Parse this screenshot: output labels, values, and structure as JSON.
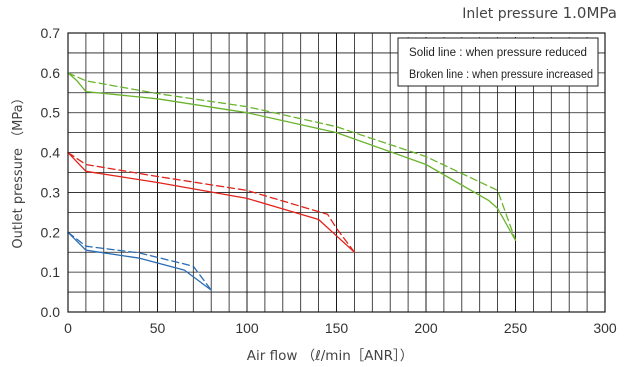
{
  "chart_data": {
    "type": "line",
    "annotation": {
      "prefix": "Inlet pressure",
      "value": "1.0MPa"
    },
    "legend_notes": [
      "Solid line : when pressure reduced",
      "Broken line : when pressure increased"
    ],
    "xlabel": "Air flow （ℓ/min［ANR］）",
    "ylabel": "Outlet pressure （MPa）",
    "xlim": [
      0,
      300
    ],
    "ylim": [
      0,
      0.7
    ],
    "x_ticks": [
      "0",
      "50",
      "100",
      "150",
      "200",
      "250",
      "300"
    ],
    "y_ticks": [
      "0.0",
      "0.1",
      "0.2",
      "0.3",
      "0.4",
      "0.5",
      "0.6",
      "0.7"
    ],
    "grid": "on",
    "legend_position": "top-right",
    "colors": {
      "blue": "#2a6db5",
      "red": "#e2231a",
      "green": "#6ab42d"
    },
    "series": [
      {
        "color": "green",
        "style": "solid",
        "points": [
          [
            0,
            0.6
          ],
          [
            5,
            0.58
          ],
          [
            10,
            0.553
          ],
          [
            50,
            0.535
          ],
          [
            100,
            0.5
          ],
          [
            150,
            0.45
          ],
          [
            200,
            0.37
          ],
          [
            235,
            0.28
          ],
          [
            240,
            0.26
          ],
          [
            250,
            0.18
          ]
        ]
      },
      {
        "color": "green",
        "style": "dashed",
        "points": [
          [
            0,
            0.6
          ],
          [
            10,
            0.58
          ],
          [
            50,
            0.548
          ],
          [
            100,
            0.515
          ],
          [
            150,
            0.465
          ],
          [
            200,
            0.39
          ],
          [
            240,
            0.305
          ],
          [
            250,
            0.18
          ]
        ]
      },
      {
        "color": "red",
        "style": "solid",
        "points": [
          [
            0,
            0.4
          ],
          [
            10,
            0.353
          ],
          [
            50,
            0.325
          ],
          [
            100,
            0.285
          ],
          [
            140,
            0.232
          ],
          [
            160,
            0.15
          ]
        ]
      },
      {
        "color": "red",
        "style": "dashed",
        "points": [
          [
            0,
            0.4
          ],
          [
            10,
            0.37
          ],
          [
            50,
            0.34
          ],
          [
            100,
            0.305
          ],
          [
            145,
            0.245
          ],
          [
            150,
            0.21
          ],
          [
            160,
            0.15
          ]
        ]
      },
      {
        "color": "blue",
        "style": "solid",
        "points": [
          [
            0,
            0.2
          ],
          [
            10,
            0.155
          ],
          [
            40,
            0.135
          ],
          [
            65,
            0.105
          ],
          [
            80,
            0.055
          ]
        ]
      },
      {
        "color": "blue",
        "style": "dashed",
        "points": [
          [
            0,
            0.2
          ],
          [
            10,
            0.165
          ],
          [
            40,
            0.148
          ],
          [
            70,
            0.115
          ],
          [
            80,
            0.055
          ]
        ]
      }
    ]
  }
}
